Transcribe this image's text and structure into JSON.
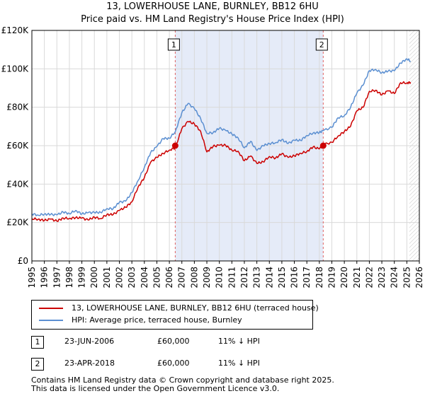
{
  "title_line1": "13, LOWERHOUSE LANE, BURNLEY, BB12 6HU",
  "title_line2": "Price paid vs. HM Land Registry's House Price Index (HPI)",
  "colors": {
    "property": "#cc0000",
    "hpi": "#5b8fd1",
    "shade": "#e5ebf8",
    "grid": "#d9d9d9",
    "vline": "#e06060",
    "hatch": "#cccccc"
  },
  "chart_data": {
    "type": "line",
    "title": "13, LOWERHOUSE LANE, BURNLEY, BB12 6HU — Price paid vs. HM Land Registry's House Price Index (HPI)",
    "xlabel": "",
    "ylabel": "",
    "xlim": [
      1995,
      2026
    ],
    "ylim": [
      0,
      120000
    ],
    "y_ticks": [
      0,
      20000,
      40000,
      60000,
      80000,
      100000,
      120000
    ],
    "y_tick_labels": [
      "£0",
      "£20K",
      "£40K",
      "£60K",
      "£80K",
      "£100K",
      "£120K"
    ],
    "x_ticks": [
      "1995",
      "1996",
      "1997",
      "1998",
      "1999",
      "2000",
      "2001",
      "2002",
      "2003",
      "2004",
      "2005",
      "2006",
      "2007",
      "2008",
      "2009",
      "2010",
      "2011",
      "2012",
      "2013",
      "2014",
      "2015",
      "2016",
      "2017",
      "2018",
      "2019",
      "2020",
      "2021",
      "2022",
      "2023",
      "2024",
      "2025",
      "2026"
    ],
    "shaded_region": [
      2006.47,
      2018.31
    ],
    "hatched_from": 2025.2,
    "series": [
      {
        "name": "13, LOWERHOUSE LANE, BURNLEY, BB12 6HU (terraced house)",
        "color": "#cc0000",
        "x": [
          1995.0,
          1995.5,
          1996.0,
          1996.5,
          1997.0,
          1997.5,
          1998.0,
          1998.5,
          1999.0,
          1999.5,
          2000.0,
          2000.5,
          2001.0,
          2001.5,
          2002.0,
          2002.5,
          2003.0,
          2003.5,
          2004.0,
          2004.5,
          2005.0,
          2005.5,
          2006.0,
          2006.47,
          2007.0,
          2007.5,
          2008.0,
          2008.5,
          2009.0,
          2009.5,
          2010.0,
          2010.5,
          2011.0,
          2011.5,
          2012.0,
          2012.5,
          2013.0,
          2013.5,
          2014.0,
          2014.5,
          2015.0,
          2015.5,
          2016.0,
          2016.5,
          2017.0,
          2017.5,
          2018.0,
          2018.31,
          2019.0,
          2019.5,
          2020.0,
          2020.5,
          2021.0,
          2021.5,
          2022.0,
          2022.5,
          2023.0,
          2023.5,
          2024.0,
          2024.5,
          2025.0,
          2025.3
        ],
        "values": [
          22000,
          21000,
          22000,
          21500,
          22000,
          21500,
          22000,
          22000,
          22000,
          22500,
          22500,
          23000,
          23000,
          24000,
          26000,
          28000,
          32000,
          38000,
          44000,
          50000,
          54000,
          56000,
          58000,
          60000,
          68000,
          73000,
          70000,
          68000,
          57000,
          60000,
          61000,
          59000,
          58000,
          56000,
          53000,
          55000,
          51000,
          52000,
          53000,
          54000,
          55000,
          55000,
          55000,
          56000,
          57000,
          58000,
          59000,
          60000,
          63000,
          65000,
          67000,
          70000,
          77000,
          81000,
          88000,
          90000,
          86000,
          88000,
          87000,
          92000,
          94000,
          93000
        ]
      },
      {
        "name": "HPI: Average price, terraced house, Burnley",
        "color": "#5b8fd1",
        "x": [
          1995.0,
          1995.5,
          1996.0,
          1996.5,
          1997.0,
          1997.5,
          1998.0,
          1998.5,
          1999.0,
          1999.5,
          2000.0,
          2000.5,
          2001.0,
          2001.5,
          2002.0,
          2002.5,
          2003.0,
          2003.5,
          2004.0,
          2004.5,
          2005.0,
          2005.5,
          2006.0,
          2006.47,
          2007.0,
          2007.5,
          2008.0,
          2008.5,
          2009.0,
          2009.5,
          2010.0,
          2010.5,
          2011.0,
          2011.5,
          2012.0,
          2012.5,
          2013.0,
          2013.5,
          2014.0,
          2014.5,
          2015.0,
          2015.5,
          2016.0,
          2016.5,
          2017.0,
          2017.5,
          2018.0,
          2018.31,
          2019.0,
          2019.5,
          2020.0,
          2020.5,
          2021.0,
          2021.5,
          2022.0,
          2022.5,
          2023.0,
          2023.5,
          2024.0,
          2024.5,
          2025.0,
          2025.3
        ],
        "values": [
          24500,
          24000,
          24500,
          24500,
          25000,
          24500,
          25000,
          25000,
          25000,
          25500,
          25500,
          26000,
          26000,
          27500,
          29500,
          32000,
          36000,
          42000,
          49000,
          55000,
          60000,
          63000,
          65000,
          67500,
          77000,
          82000,
          78000,
          75000,
          66000,
          68000,
          69000,
          67500,
          66000,
          63000,
          60000,
          62000,
          58500,
          59500,
          60500,
          61500,
          62500,
          62500,
          62500,
          63500,
          64500,
          66000,
          67000,
          67500,
          71000,
          74000,
          76000,
          79000,
          87000,
          92000,
          99000,
          101000,
          97000,
          99000,
          98000,
          103000,
          106000,
          104000
        ]
      }
    ],
    "markers": [
      {
        "label": "1",
        "x": 2006.47,
        "y": 60000
      },
      {
        "label": "2",
        "x": 2018.31,
        "y": 60000
      }
    ]
  },
  "legend": {
    "property_label": "13, LOWERHOUSE LANE, BURNLEY, BB12 6HU (terraced house)",
    "hpi_label": "HPI: Average price, terraced house, Burnley"
  },
  "transactions": [
    {
      "num": "1",
      "date": "23-JUN-2006",
      "price": "£60,000",
      "hpi": "11% ↓ HPI"
    },
    {
      "num": "2",
      "date": "23-APR-2018",
      "price": "£60,000",
      "hpi": "11% ↓ HPI"
    }
  ],
  "footer": {
    "line1": "Contains HM Land Registry data © Crown copyright and database right 2025.",
    "line2": "This data is licensed under the Open Government Licence v3.0."
  }
}
